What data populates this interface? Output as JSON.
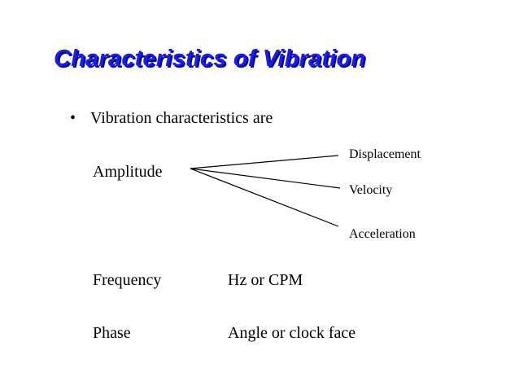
{
  "slide": {
    "title": "Characteristics of Vibration",
    "bullet_marker": "•",
    "bullet_text": "Vibration characteristics are",
    "amplitude": {
      "label": "Amplitude",
      "branches": [
        "Displacement",
        "Velocity",
        "Acceleration"
      ]
    },
    "rows": [
      {
        "label": "Frequency",
        "value": "Hz or CPM"
      },
      {
        "label": "Phase",
        "value": "Angle or clock face"
      }
    ]
  },
  "colors": {
    "title": "#1a1aff",
    "title_shadow": "#0a0a4a",
    "text": "#000000",
    "background": "#ffffff"
  }
}
